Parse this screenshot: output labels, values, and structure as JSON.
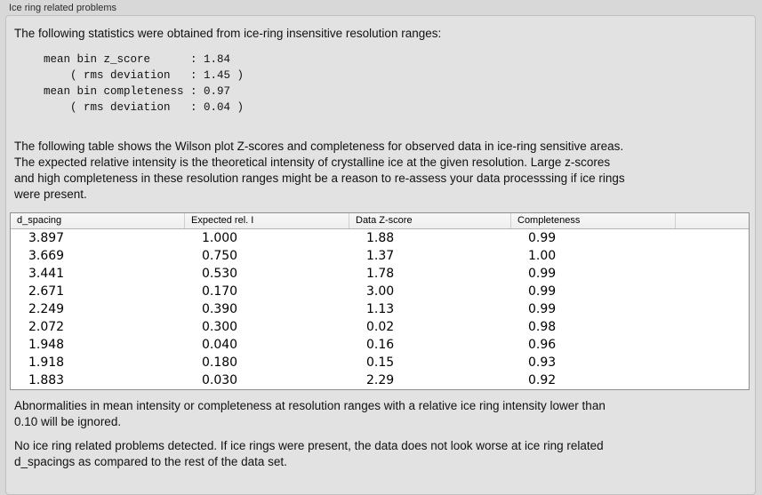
{
  "panel": {
    "title": "Ice ring related problems"
  },
  "stats": {
    "intro": "The following statistics were obtained from ice-ring insensitive resolution ranges:",
    "block": "mean bin z_score      : 1.84\n    ( rms deviation   : 1.45 )\nmean bin completeness : 0.97\n    ( rms deviation   : 0.04 )"
  },
  "table_description": "The following table shows the Wilson plot Z-scores and completeness for observed data in ice-ring sensitive areas.\nThe expected relative intensity is the theoretical intensity of crystalline ice at the given resolution. Large z-scores\nand high completeness in these resolution ranges might be a reason to re-assess your data processsing if ice rings\nwere present.",
  "table": {
    "columns": [
      "d_spacing",
      "Expected rel. I",
      "Data Z-score",
      "Completeness"
    ],
    "rows": [
      [
        "3.897",
        "1.000",
        "1.88",
        "0.99"
      ],
      [
        "3.669",
        "0.750",
        "1.37",
        "1.00"
      ],
      [
        "3.441",
        "0.530",
        "1.78",
        "0.99"
      ],
      [
        "2.671",
        "0.170",
        "3.00",
        "0.99"
      ],
      [
        "2.249",
        "0.390",
        "1.13",
        "0.99"
      ],
      [
        "2.072",
        "0.300",
        "0.02",
        "0.98"
      ],
      [
        "1.948",
        "0.040",
        "0.16",
        "0.96"
      ],
      [
        "1.918",
        "0.180",
        "0.15",
        "0.93"
      ],
      [
        "1.883",
        "0.030",
        "2.29",
        "0.92"
      ]
    ]
  },
  "notes": {
    "ignore_note": "Abnormalities in mean intensity or completeness at resolution ranges with a relative ice ring intensity lower than\n0.10 will be ignored.",
    "conclusion": "No ice ring related problems detected. If ice rings were present, the data does not look worse at ice ring related\nd_spacings as compared to the rest of the data set."
  },
  "colors": {
    "window_background": "#d8d8d8",
    "panel_background": "#e2e2e2",
    "table_background": "#ffffff",
    "table_border": "#8f8f8f",
    "header_background": "#f4f4f4",
    "text": "#111111"
  }
}
